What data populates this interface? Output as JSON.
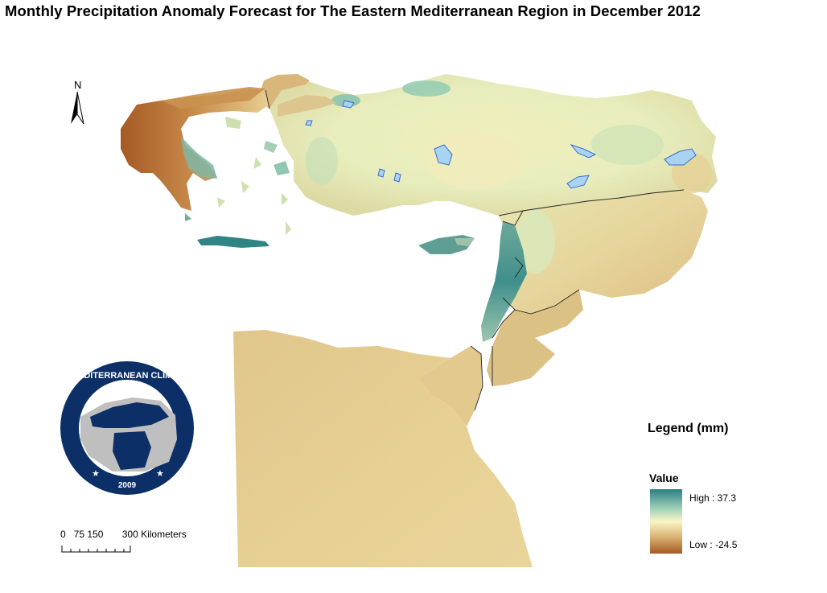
{
  "title": "Monthly Precipitation Anomaly Forecast for The Eastern Mediterranean Region in December 2012",
  "north_arrow": {
    "label": "N",
    "icon": "north-arrow-icon"
  },
  "logo": {
    "name": "EASTERN MEDITERRANEAN CLIMATE CENTRE",
    "year": "2009",
    "colors": {
      "navy": "#0b2f66",
      "grey": "#bfbfbf",
      "white": "#ffffff"
    }
  },
  "scale_bar": {
    "labels": "0   75 150       300 Kilometers"
  },
  "legend": {
    "title": "Legend (mm)",
    "field": "Value",
    "high_label": "High : 37.3",
    "low_label": "Low : -24.5",
    "high_value": 37.3,
    "low_value": -24.5,
    "ramp_colors": [
      "#2a7f84",
      "#9ed1b8",
      "#fbf6c6",
      "#d8b070",
      "#a45a24"
    ]
  },
  "map_colors": {
    "wet": "#2a7f84",
    "neutral": "#eef0b8",
    "dry_light": "#e6cf92",
    "dry": "#c89352",
    "very_dry": "#a45a24",
    "lakes": "#a8d4f2"
  }
}
